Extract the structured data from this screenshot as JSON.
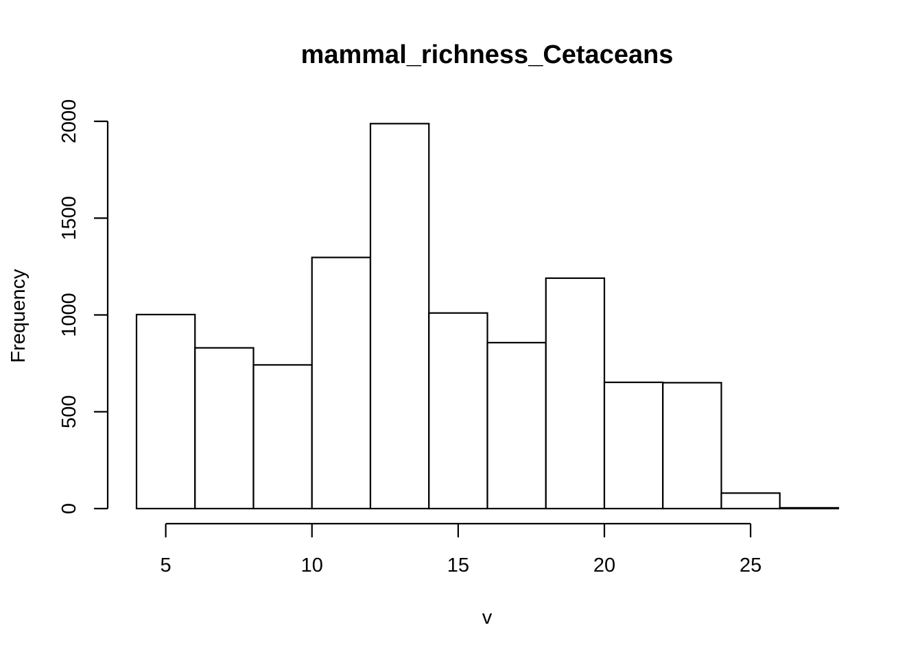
{
  "chart_data": {
    "type": "bar",
    "title": "mammal_richness_Cetaceans",
    "xlabel": "v",
    "ylabel": "Frequency",
    "bins": [
      {
        "start": 4,
        "end": 6,
        "value": 1002
      },
      {
        "start": 6,
        "end": 8,
        "value": 830
      },
      {
        "start": 8,
        "end": 10,
        "value": 742
      },
      {
        "start": 10,
        "end": 12,
        "value": 1297
      },
      {
        "start": 12,
        "end": 14,
        "value": 1988
      },
      {
        "start": 14,
        "end": 16,
        "value": 1010
      },
      {
        "start": 16,
        "end": 18,
        "value": 857
      },
      {
        "start": 18,
        "end": 20,
        "value": 1190
      },
      {
        "start": 20,
        "end": 22,
        "value": 652
      },
      {
        "start": 22,
        "end": 24,
        "value": 650
      },
      {
        "start": 24,
        "end": 26,
        "value": 80
      },
      {
        "start": 26,
        "end": 28,
        "value": 4
      }
    ],
    "xticks": [
      5,
      10,
      15,
      20,
      25
    ],
    "yticks": [
      0,
      500,
      1000,
      1500,
      2000
    ],
    "xlim": [
      4,
      28
    ],
    "ylim": [
      0,
      2000
    ],
    "grid": false,
    "legend": "none"
  }
}
